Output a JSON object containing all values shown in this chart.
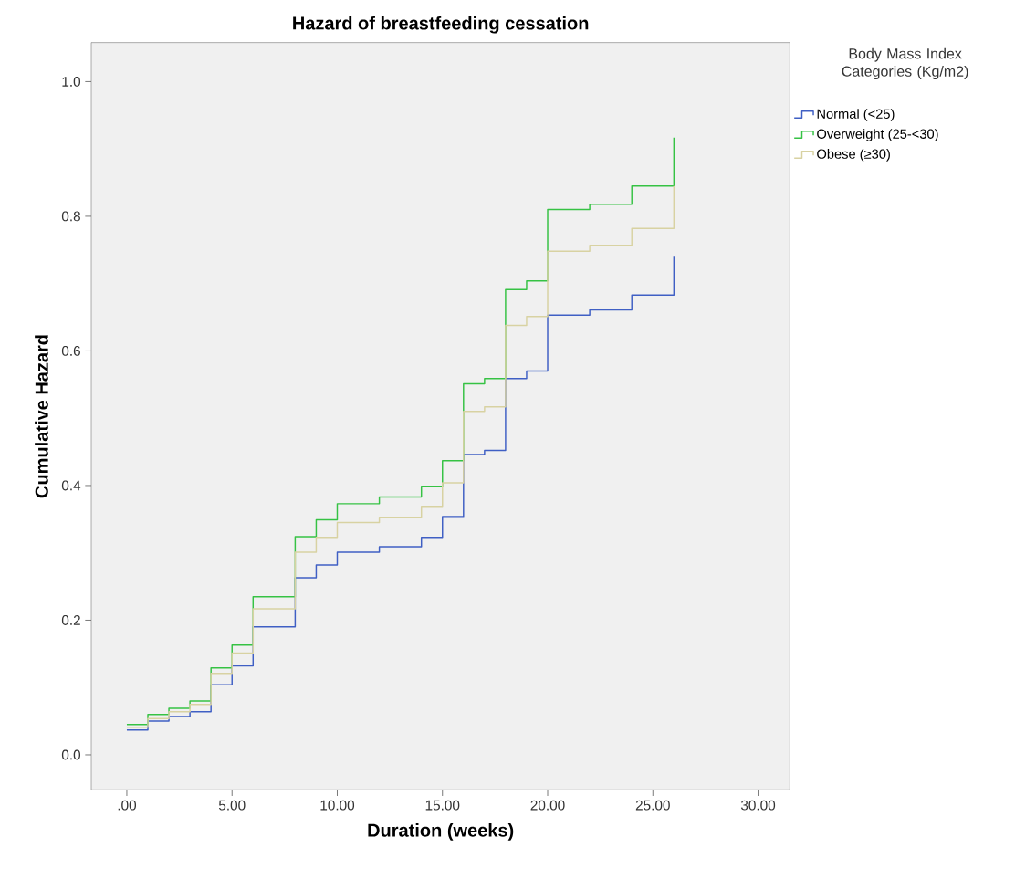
{
  "chart_data": {
    "type": "step",
    "title": "Hazard of breastfeeding cessation",
    "xlabel": "Duration (weeks)",
    "ylabel": "Cumulative Hazard",
    "legend_title": "Body Mass Index Categories (Kg/m2)",
    "x": [
      0,
      1,
      2,
      3,
      4,
      5,
      6,
      8,
      9,
      10,
      12,
      14,
      15,
      16,
      17,
      18,
      19,
      20,
      22,
      24,
      26,
      26
    ],
    "series": [
      {
        "name": "Normal (<25)",
        "color": "#3f5fc4",
        "values": [
          0.037,
          0.05,
          0.057,
          0.064,
          0.104,
          0.132,
          0.19,
          0.263,
          0.282,
          0.301,
          0.309,
          0.323,
          0.354,
          0.446,
          0.452,
          0.559,
          0.57,
          0.653,
          0.661,
          0.683,
          0.683,
          0.74
        ]
      },
      {
        "name": "Overweight (25-<30)",
        "color": "#36c244",
        "values": [
          0.045,
          0.06,
          0.069,
          0.08,
          0.129,
          0.163,
          0.235,
          0.324,
          0.349,
          0.373,
          0.383,
          0.399,
          0.437,
          0.551,
          0.559,
          0.691,
          0.704,
          0.81,
          0.818,
          0.845,
          0.845,
          0.917
        ]
      },
      {
        "name": "Obese (≥30)",
        "color": "#d8d2a2",
        "values": [
          0.041,
          0.054,
          0.064,
          0.075,
          0.121,
          0.151,
          0.217,
          0.301,
          0.323,
          0.345,
          0.353,
          0.369,
          0.404,
          0.51,
          0.517,
          0.638,
          0.651,
          0.748,
          0.757,
          0.782,
          0.782,
          0.845
        ]
      }
    ],
    "xlim": [
      -1.69,
      31.51
    ],
    "ylim": [
      -0.052,
      1.058
    ],
    "xticks": [
      {
        "value": 0,
        "label": ".00"
      },
      {
        "value": 5,
        "label": "5.00"
      },
      {
        "value": 10,
        "label": "10.00"
      },
      {
        "value": 15,
        "label": "15.00"
      },
      {
        "value": 20,
        "label": "20.00"
      },
      {
        "value": 25,
        "label": "25.00"
      },
      {
        "value": 30,
        "label": "30.00"
      }
    ],
    "yticks": [
      {
        "value": 0,
        "label": "0.0"
      },
      {
        "value": 0.2,
        "label": "0.2"
      },
      {
        "value": 0.4,
        "label": "0.4"
      },
      {
        "value": 0.6,
        "label": "0.6"
      },
      {
        "value": 0.8,
        "label": "0.8"
      },
      {
        "value": 1.0,
        "label": "1.0"
      }
    ],
    "grid": false,
    "legend": "top right",
    "line_style": "solid",
    "marker": "none"
  }
}
